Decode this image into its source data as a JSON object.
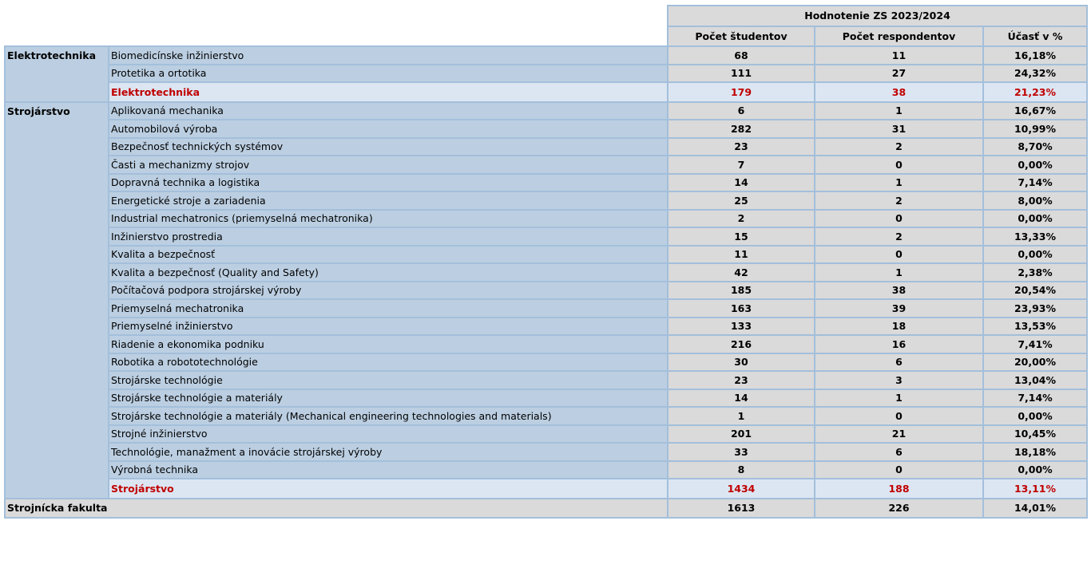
{
  "header": {
    "title": "Hodnotenie ZS 2023/2024",
    "columns": [
      "Počet študentov",
      "Počet respondentov",
      "Účasť v %"
    ]
  },
  "groups": [
    {
      "name": "Elektrotechnika",
      "rows": [
        [
          "Biomedicínske inžinierstvo",
          "68",
          "11",
          "16,18%"
        ],
        [
          "Protetika a ortotika",
          "111",
          "27",
          "24,32%"
        ]
      ],
      "subtotal": [
        "Elektrotechnika",
        "179",
        "38",
        "21,23%"
      ]
    },
    {
      "name": "Strojárstvo",
      "rows": [
        [
          "Aplikovaná mechanika",
          "6",
          "1",
          "16,67%"
        ],
        [
          "Automobilová výroba",
          "282",
          "31",
          "10,99%"
        ],
        [
          "Bezpečnosť technických systémov",
          "23",
          "2",
          "8,70%"
        ],
        [
          "Časti a mechanizmy strojov",
          "7",
          "0",
          "0,00%"
        ],
        [
          "Dopravná technika a logistika",
          "14",
          "1",
          "7,14%"
        ],
        [
          "Energetické stroje a zariadenia",
          "25",
          "2",
          "8,00%"
        ],
        [
          "Industrial mechatronics (priemyselná mechatronika)",
          "2",
          "0",
          "0,00%"
        ],
        [
          "Inžinierstvo prostredia",
          "15",
          "2",
          "13,33%"
        ],
        [
          "Kvalita a bezpečnosť",
          "11",
          "0",
          "0,00%"
        ],
        [
          "Kvalita a bezpečnosť (Quality and Safety)",
          "42",
          "1",
          "2,38%"
        ],
        [
          "Počítačová podpora strojárskej výroby",
          "185",
          "38",
          "20,54%"
        ],
        [
          "Priemyselná mechatronika",
          "163",
          "39",
          "23,93%"
        ],
        [
          "Priemyselné inžinierstvo",
          "133",
          "18",
          "13,53%"
        ],
        [
          "Riadenie a ekonomika podniku",
          "216",
          "16",
          "7,41%"
        ],
        [
          "Robotika a robototechnológie",
          "30",
          "6",
          "20,00%"
        ],
        [
          "Strojárske technológie",
          "23",
          "3",
          "13,04%"
        ],
        [
          "Strojárske technológie a materiály",
          "14",
          "1",
          "7,14%"
        ],
        [
          "Strojárske technológie a materiály (Mechanical engineering technologies and materials)",
          "1",
          "0",
          "0,00%"
        ],
        [
          "Strojné inžinierstvo",
          "201",
          "21",
          "10,45%"
        ],
        [
          "Technológie, manažment a inovácie strojárskej výroby",
          "33",
          "6",
          "18,18%"
        ],
        [
          "Výrobná technika",
          "8",
          "0",
          "0,00%"
        ]
      ],
      "subtotal": [
        "Strojárstvo",
        "1434",
        "188",
        "13,11%"
      ]
    }
  ],
  "total": [
    "Strojnícka fakulta",
    "1613",
    "226",
    "14,01%"
  ]
}
